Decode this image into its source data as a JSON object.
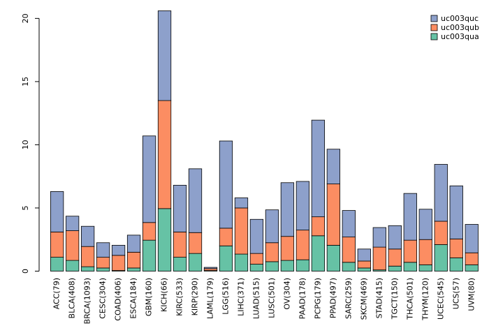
{
  "chart_data": {
    "type": "bar",
    "stacked": true,
    "title": "",
    "xlabel": "",
    "ylabel": "",
    "ylim": [
      0,
      20.6
    ],
    "yticks": [
      0,
      5,
      10,
      15,
      20
    ],
    "legend_position": "top-right",
    "categories": [
      "ACC(79)",
      "BLCA(408)",
      "BRCA(1093)",
      "CESC(304)",
      "COAD(406)",
      "ESCA(184)",
      "GBM(160)",
      "KICH(66)",
      "KIRC(533)",
      "KIRP(290)",
      "LAML(179)",
      "LGG(516)",
      "LIHC(371)",
      "LUAD(515)",
      "LUSC(501)",
      "OV(304)",
      "PAAD(178)",
      "PCPG(179)",
      "PPAD(497)",
      "SARC(259)",
      "SKCM(469)",
      "STAD(415)",
      "TGCT(150)",
      "THCA(501)",
      "THYM(120)",
      "UCEC(545)",
      "UCS(57)",
      "UVM(80)"
    ],
    "series": [
      {
        "name": "uc003qua",
        "color": "#66c2a5",
        "values": [
          1.1,
          0.85,
          0.35,
          0.25,
          0.05,
          0.25,
          2.45,
          4.95,
          1.1,
          1.4,
          0.05,
          2.0,
          1.35,
          0.55,
          0.75,
          0.85,
          0.9,
          2.8,
          2.05,
          0.7,
          0.25,
          0.1,
          0.4,
          0.7,
          0.5,
          2.1,
          1.05,
          0.5
        ]
      },
      {
        "name": "uc003qub",
        "color": "#fc8d62",
        "values": [
          2.0,
          2.35,
          1.6,
          0.85,
          1.2,
          1.25,
          1.4,
          8.55,
          2.0,
          1.65,
          0.15,
          1.4,
          3.65,
          0.85,
          1.5,
          1.9,
          2.35,
          1.5,
          4.85,
          2.0,
          0.55,
          1.8,
          1.35,
          1.75,
          2.0,
          1.85,
          1.5,
          0.95
        ]
      },
      {
        "name": "uc003quc",
        "color": "#8da0cb",
        "values": [
          3.2,
          1.15,
          1.6,
          1.15,
          0.8,
          1.35,
          6.85,
          7.1,
          3.7,
          5.05,
          0.1,
          6.9,
          0.8,
          2.7,
          2.6,
          4.25,
          3.85,
          7.65,
          2.75,
          2.1,
          0.95,
          1.55,
          1.85,
          3.7,
          2.4,
          4.5,
          4.2,
          2.25
        ]
      }
    ]
  }
}
